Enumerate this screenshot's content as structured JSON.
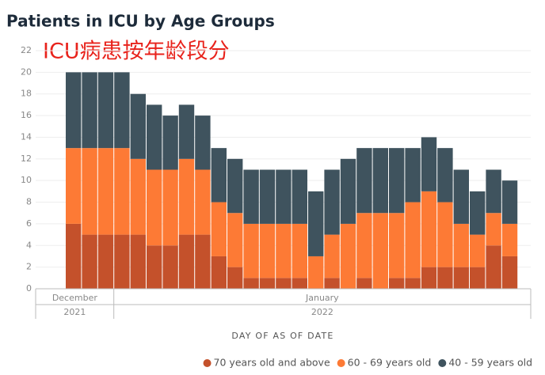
{
  "chart_data": {
    "type": "stacked_bar",
    "title": "Patients in ICU by Age Groups",
    "annotation": "ICU病患按年龄段分",
    "x_label": "DAY OF AS OF DATE",
    "categories": [
      "December",
      "December",
      "December",
      "January",
      "January",
      "January",
      "January",
      "January",
      "January",
      "January",
      "January",
      "January",
      "January",
      "January",
      "January",
      "January",
      "January",
      "January",
      "January",
      "January",
      "January",
      "January",
      "January",
      "January",
      "January",
      "January",
      "January",
      "January"
    ],
    "years": [
      "2021",
      "2021",
      "2021",
      "2022",
      "2022",
      "2022",
      "2022",
      "2022",
      "2022",
      "2022",
      "2022",
      "2022",
      "2022",
      "2022",
      "2022",
      "2022",
      "2022",
      "2022",
      "2022",
      "2022",
      "2022",
      "2022",
      "2022",
      "2022",
      "2022",
      "2022",
      "2022",
      "2022"
    ],
    "series": [
      {
        "name": "70 years old and above",
        "color": "#c4512b",
        "values": [
          6,
          5,
          5,
          5,
          5,
          4,
          4,
          5,
          5,
          3,
          2,
          1,
          1,
          1,
          1,
          0,
          1,
          0,
          1,
          0,
          1,
          1,
          2,
          2,
          2,
          2,
          4,
          3
        ]
      },
      {
        "name": "60 - 69 years old",
        "color": "#fd7a35",
        "values": [
          7,
          8,
          8,
          8,
          7,
          7,
          7,
          7,
          6,
          5,
          5,
          5,
          5,
          5,
          5,
          3,
          4,
          6,
          6,
          7,
          6,
          7,
          7,
          6,
          4,
          3,
          3,
          3
        ]
      },
      {
        "name": "40 - 59 years old",
        "color": "#3f535e",
        "values": [
          7,
          7,
          7,
          7,
          6,
          6,
          5,
          5,
          5,
          5,
          5,
          5,
          5,
          5,
          5,
          6,
          6,
          6,
          6,
          6,
          6,
          5,
          5,
          5,
          5,
          4,
          4,
          4
        ]
      }
    ],
    "ylim": [
      0,
      22
    ],
    "yticks": [
      0,
      2,
      4,
      6,
      8,
      10,
      12,
      14,
      16,
      18,
      20,
      22
    ],
    "grid": true
  }
}
